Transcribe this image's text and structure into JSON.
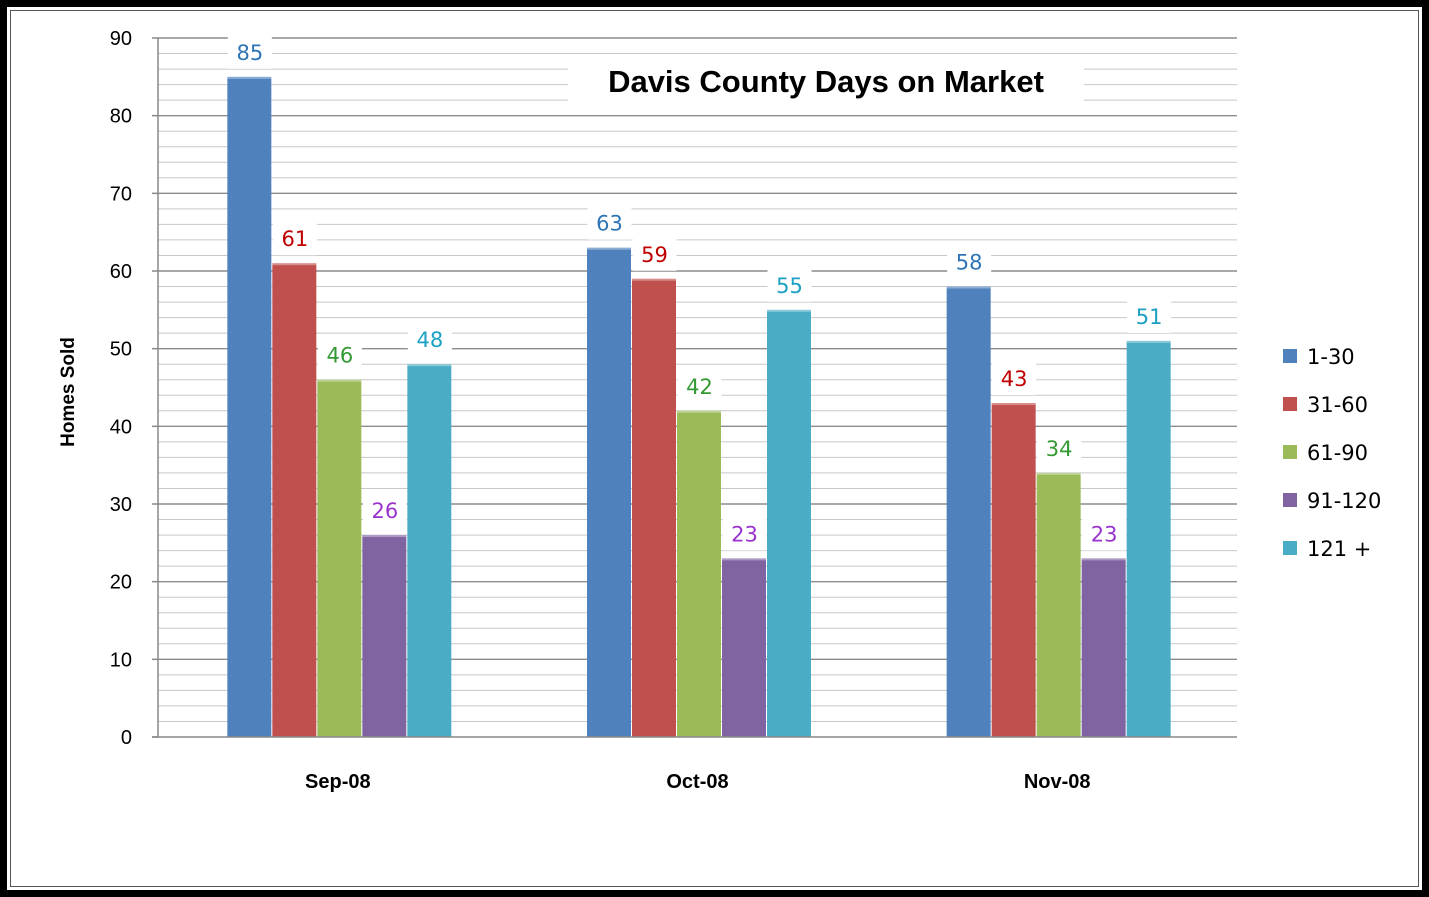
{
  "chart_data": {
    "type": "bar",
    "title": "Davis County Days on Market",
    "xlabel": "",
    "ylabel": "Homes Sold",
    "ylim": [
      0,
      90
    ],
    "yticks": [
      0,
      10,
      20,
      30,
      40,
      50,
      60,
      70,
      80,
      90
    ],
    "grid": true,
    "legend_position": "right",
    "categories": [
      "Sep-08",
      "Oct-08",
      "Nov-08"
    ],
    "series": [
      {
        "name": "1-30",
        "values": [
          85,
          63,
          58
        ],
        "color": "#4F81BD",
        "label_color": "#2E75B6"
      },
      {
        "name": "31-60",
        "values": [
          61,
          59,
          43
        ],
        "color": "#C0504D",
        "label_color": "#C00000"
      },
      {
        "name": "61-90",
        "values": [
          46,
          42,
          34
        ],
        "color": "#9BBB59",
        "label_color": "#339933"
      },
      {
        "name": "91-120",
        "values": [
          26,
          23,
          23
        ],
        "color": "#8064A2",
        "label_color": "#9933CC"
      },
      {
        "name": "121 +",
        "values": [
          48,
          55,
          51
        ],
        "color": "#4BACC6",
        "label_color": "#1BA1C4"
      }
    ]
  }
}
